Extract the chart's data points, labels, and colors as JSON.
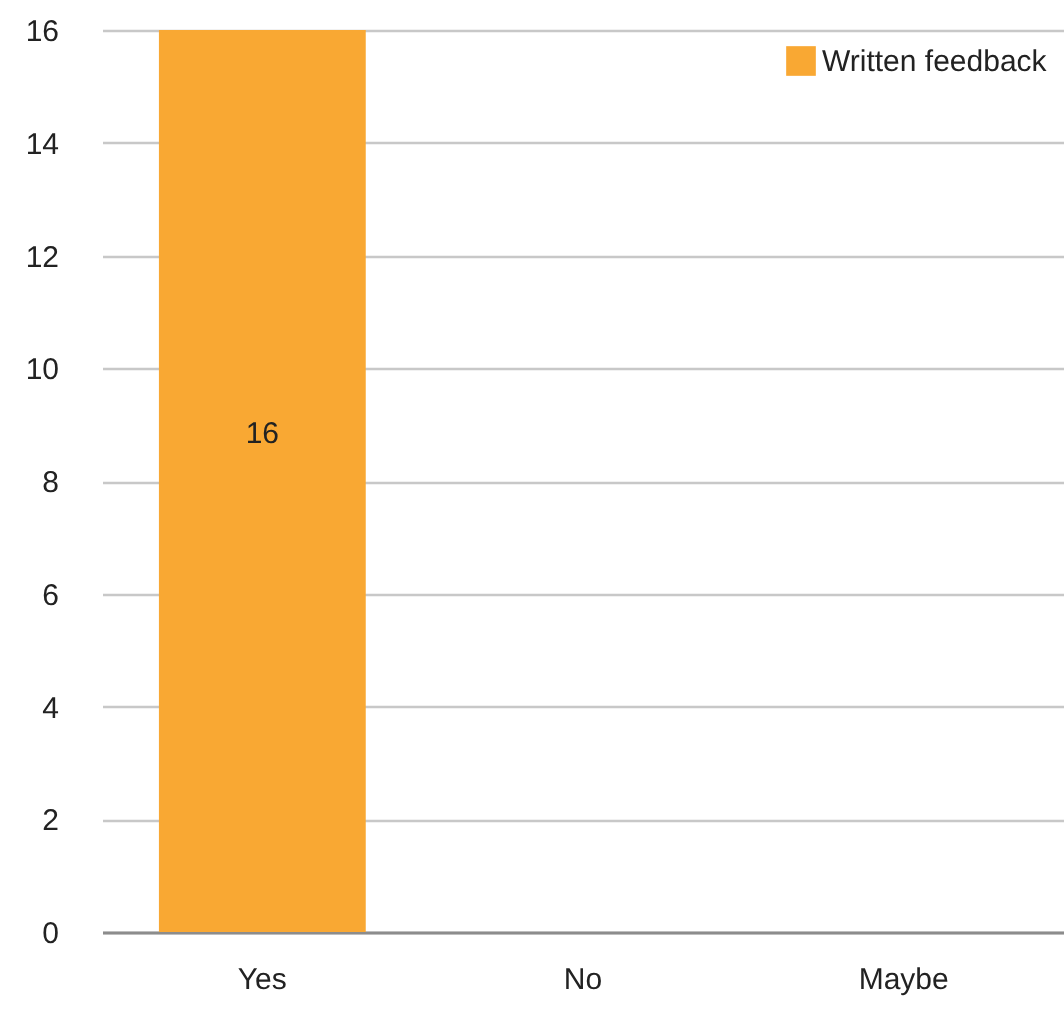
{
  "chart_data": {
    "type": "bar",
    "categories": [
      "Yes",
      "No",
      "Maybe"
    ],
    "series": [
      {
        "name": "Written feedback",
        "color": "#f9a833",
        "values": [
          16,
          0,
          0
        ],
        "value_labels": [
          "16",
          null,
          null
        ]
      }
    ],
    "ylim": [
      0,
      16
    ],
    "yticks": [
      0,
      2,
      4,
      6,
      8,
      10,
      12,
      14,
      16
    ],
    "grid": "y",
    "legend": "top right"
  }
}
